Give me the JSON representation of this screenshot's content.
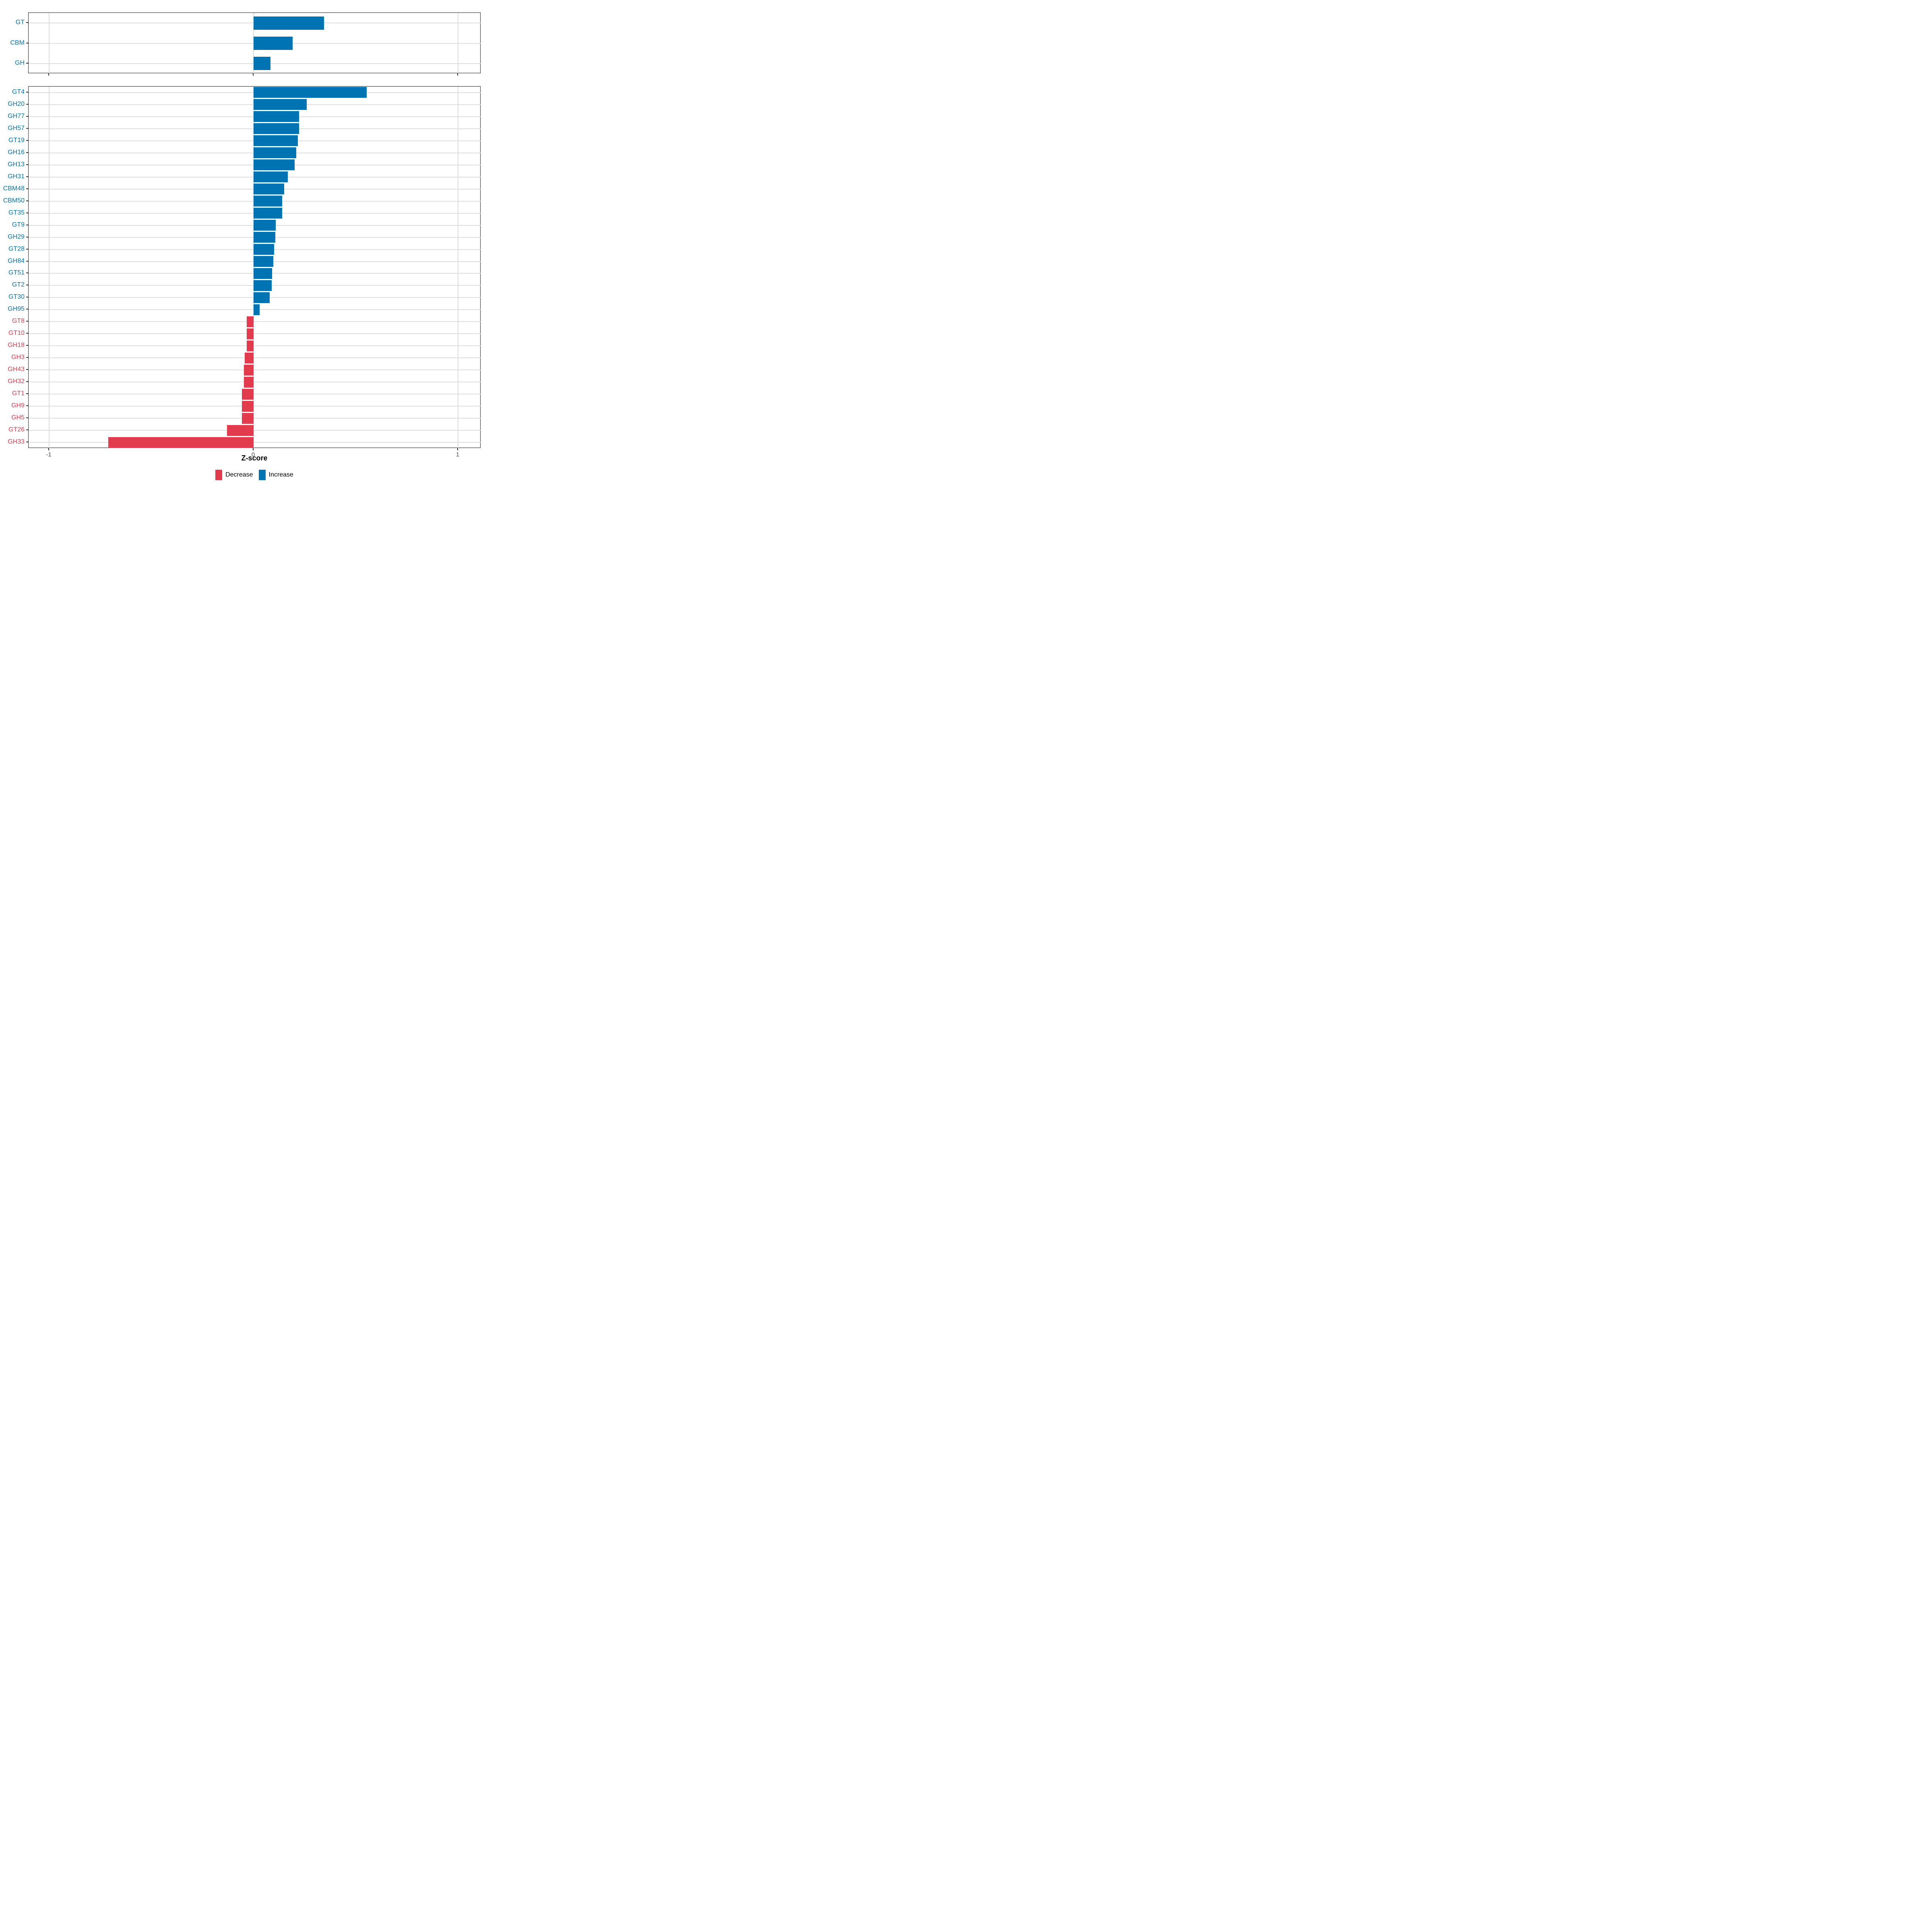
{
  "figure_background": "#ffffff",
  "chart_data": {
    "type": "bar",
    "orientation": "horizontal",
    "title": "",
    "xlabel": "Z-score",
    "x_ticks": [
      -1,
      0,
      1
    ],
    "x_tick_labels": [
      "-1",
      "0",
      "1"
    ],
    "xlim": [
      -1.11,
      1.1
    ],
    "grid": "vertical gridlines at -1, 0, 1; one horizontal gridline per category",
    "legend_position": "bottom-center",
    "colors": {
      "increase": "#0074b3",
      "decrease": "#e23b4e",
      "gridline": "#dedede",
      "panel_border": "#1a1a1a",
      "tick_label": "#4d4d4d"
    },
    "legend": [
      {
        "label": "Decrease",
        "color": "#e23b4e"
      },
      {
        "label": "Increase",
        "color": "#0074b3"
      }
    ],
    "panels": [
      {
        "name": "class-summary",
        "categories": [
          "GT",
          "CBM",
          "GH"
        ],
        "values": [
          0.345,
          0.19,
          0.083
        ]
      },
      {
        "name": "family-detail",
        "categories": [
          "GT4",
          "GH20",
          "GH77",
          "GH57",
          "GT19",
          "GH16",
          "GH13",
          "GH31",
          "CBM48",
          "CBM50",
          "GT35",
          "GT9",
          "GH29",
          "GT28",
          "GH84",
          "GT51",
          "GT2",
          "GT30",
          "GH95",
          "GT8",
          "GT10",
          "GH18",
          "GH3",
          "GH43",
          "GH32",
          "GT1",
          "GH9",
          "GH5",
          "GT26",
          "GH33"
        ],
        "values": [
          0.553,
          0.26,
          0.222,
          0.222,
          0.216,
          0.209,
          0.201,
          0.168,
          0.15,
          0.14,
          0.139,
          0.108,
          0.107,
          0.1,
          0.096,
          0.09,
          0.089,
          0.079,
          0.029,
          -0.033,
          -0.033,
          -0.033,
          -0.044,
          -0.047,
          -0.047,
          -0.057,
          -0.057,
          -0.057,
          -0.13,
          -0.71
        ]
      }
    ]
  }
}
